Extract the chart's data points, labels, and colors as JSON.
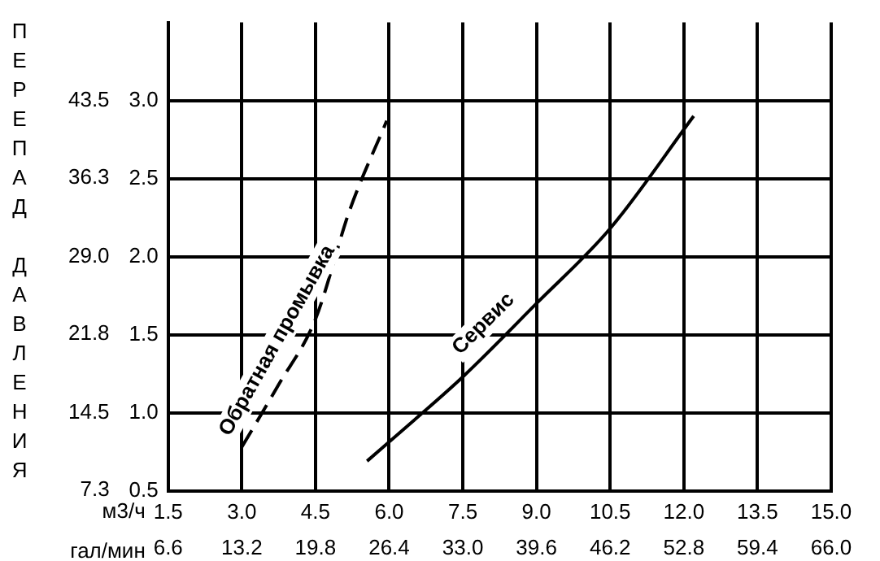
{
  "chart_data": {
    "type": "line",
    "ylabel": "ПЕРЕПАД ДАВЛЕНИЯ",
    "xlabel": "м3/ч",
    "x2label": "гал/мин",
    "series": [
      {
        "name": "Обратная промывка",
        "color": "#000000",
        "line_style": "dashed",
        "x": [
          3.0,
          3.75,
          4.5,
          5.2,
          5.95
        ],
        "values": [
          0.78,
          1.18,
          1.6,
          2.3,
          2.87
        ]
      },
      {
        "name": "Сервис",
        "color": "#000000",
        "line_style": "solid",
        "x": [
          5.55,
          6.5,
          7.5,
          9.0,
          10.5,
          12.2
        ],
        "values": [
          0.69,
          0.95,
          1.23,
          1.7,
          2.18,
          2.9
        ]
      }
    ],
    "xlim": [
      1.5,
      15.0
    ],
    "xticks": [
      1.5,
      {
        "value": 3,
        "label": "3.0"
      },
      4.5,
      {
        "value": 6,
        "label": "6.0"
      },
      7.5,
      {
        "value": 9,
        "label": "9.0"
      },
      10.5,
      {
        "value": 12,
        "label": "12.0"
      },
      13.5,
      {
        "value": 15,
        "label": "15.0"
      }
    ],
    "x2lim": [
      6.6,
      66.0
    ],
    "x2ticks": [
      6.6,
      13.2,
      19.8,
      26.4,
      {
        "value": 33,
        "label": "33.0"
      },
      39.6,
      46.2,
      52.8,
      59.4,
      {
        "value": 66,
        "label": "66.0"
      }
    ],
    "ylim": [
      0.5,
      3.5
    ],
    "yticks": [
      0.5,
      {
        "value": 1,
        "label": "1.0"
      },
      1.5,
      {
        "value": 2,
        "label": "2.0"
      },
      2.5,
      {
        "value": 3,
        "label": "3.0"
      }
    ],
    "y2lim": [
      7.25,
      50.75
    ],
    "y2ticks": [
      7.3,
      14.5,
      {
        "value": 29,
        "label": "29.0"
      },
      21.8,
      36.3,
      43.5
    ],
    "grid": true,
    "legend": false
  }
}
